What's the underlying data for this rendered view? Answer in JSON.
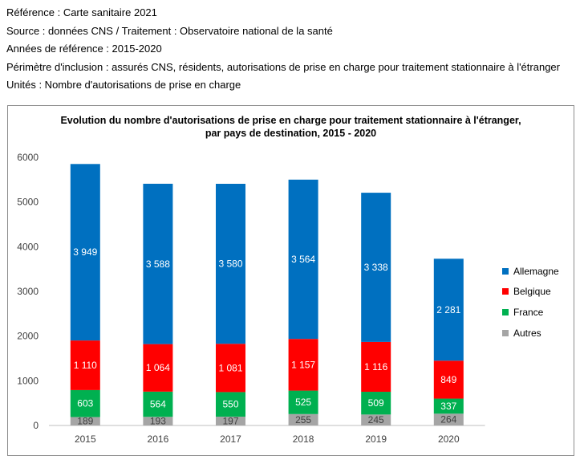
{
  "header": {
    "lines": [
      "Référence : Carte sanitaire 2021",
      "Source : données CNS / Traitement : Observatoire national de la santé",
      "Années de référence : 2015-2020",
      "Périmètre d'inclusion : assurés CNS, résidents, autorisations de prise en charge pour traitement stationnaire à l'étranger",
      "Unités : Nombre d'autorisations de prise en charge"
    ]
  },
  "chart_data": {
    "type": "bar",
    "stacked": true,
    "title_line1": "Evolution du nombre d'autorisations de prise en charge pour traitement stationnaire à l'étranger,",
    "title_line2": "par pays de destination, 2015 - 2020",
    "categories": [
      "2015",
      "2016",
      "2017",
      "2018",
      "2019",
      "2020"
    ],
    "series": [
      {
        "name": "Autres",
        "color": "#a5a5a5",
        "values": [
          189,
          193,
          197,
          255,
          245,
          264
        ],
        "labels": [
          "189",
          "193",
          "197",
          "255",
          "245",
          "264"
        ],
        "label_color": "#404040"
      },
      {
        "name": "France",
        "color": "#00b050",
        "values": [
          603,
          564,
          550,
          525,
          509,
          337
        ],
        "labels": [
          "603",
          "564",
          "550",
          "525",
          "509",
          "337"
        ],
        "label_color": "#ffffff"
      },
      {
        "name": "Belgique",
        "color": "#ff0000",
        "values": [
          1110,
          1064,
          1081,
          1157,
          1116,
          849
        ],
        "labels": [
          "1 110",
          "1 064",
          "1 081",
          "1 157",
          "1 116",
          "849"
        ],
        "label_color": "#ffffff"
      },
      {
        "name": "Allemagne",
        "color": "#0070c0",
        "values": [
          3949,
          3588,
          3580,
          3564,
          3338,
          2281
        ],
        "labels": [
          "3 949",
          "3 588",
          "3 580",
          "3 564",
          "3 338",
          "2 281"
        ],
        "label_color": "#ffffff"
      }
    ],
    "legend_order": [
      "Allemagne",
      "Belgique",
      "France",
      "Autres"
    ],
    "ylim": [
      0,
      6000
    ],
    "yticks": [
      0,
      1000,
      2000,
      3000,
      4000,
      5000,
      6000
    ],
    "grid": false,
    "legend_position": "right"
  }
}
